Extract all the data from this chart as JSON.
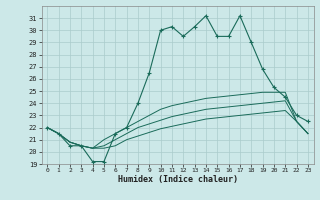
{
  "title": "",
  "xlabel": "Humidex (Indice chaleur)",
  "bg_color": "#cce8e8",
  "grid_color": "#aacccc",
  "line_color": "#1a6b5a",
  "xlim": [
    -0.5,
    23.5
  ],
  "ylim": [
    19,
    32
  ],
  "yticks": [
    19,
    20,
    21,
    22,
    23,
    24,
    25,
    26,
    27,
    28,
    29,
    30,
    31
  ],
  "xticks": [
    0,
    1,
    2,
    3,
    4,
    5,
    6,
    7,
    8,
    9,
    10,
    11,
    12,
    13,
    14,
    15,
    16,
    17,
    18,
    19,
    20,
    21,
    22,
    23
  ],
  "main_line": [
    22.0,
    21.5,
    20.5,
    20.5,
    19.2,
    19.2,
    21.5,
    22.0,
    24.0,
    26.5,
    30.0,
    30.3,
    29.5,
    30.3,
    31.2,
    29.5,
    29.5,
    31.2,
    29.0,
    26.8,
    25.3,
    24.5,
    23.0,
    22.5
  ],
  "trend1": [
    22.0,
    21.5,
    20.8,
    20.5,
    20.3,
    21.0,
    21.5,
    22.0,
    22.5,
    23.0,
    23.5,
    23.8,
    24.0,
    24.2,
    24.4,
    24.5,
    24.6,
    24.7,
    24.8,
    24.9,
    24.9,
    24.9,
    22.5,
    21.5
  ],
  "trend2": [
    22.0,
    21.5,
    20.8,
    20.5,
    20.3,
    20.5,
    21.0,
    21.5,
    22.0,
    22.3,
    22.6,
    22.9,
    23.1,
    23.3,
    23.5,
    23.6,
    23.7,
    23.8,
    23.9,
    24.0,
    24.1,
    24.2,
    22.5,
    21.5
  ],
  "trend3": [
    22.0,
    21.5,
    20.8,
    20.5,
    20.3,
    20.3,
    20.5,
    21.0,
    21.3,
    21.6,
    21.9,
    22.1,
    22.3,
    22.5,
    22.7,
    22.8,
    22.9,
    23.0,
    23.1,
    23.2,
    23.3,
    23.4,
    22.5,
    21.5
  ]
}
